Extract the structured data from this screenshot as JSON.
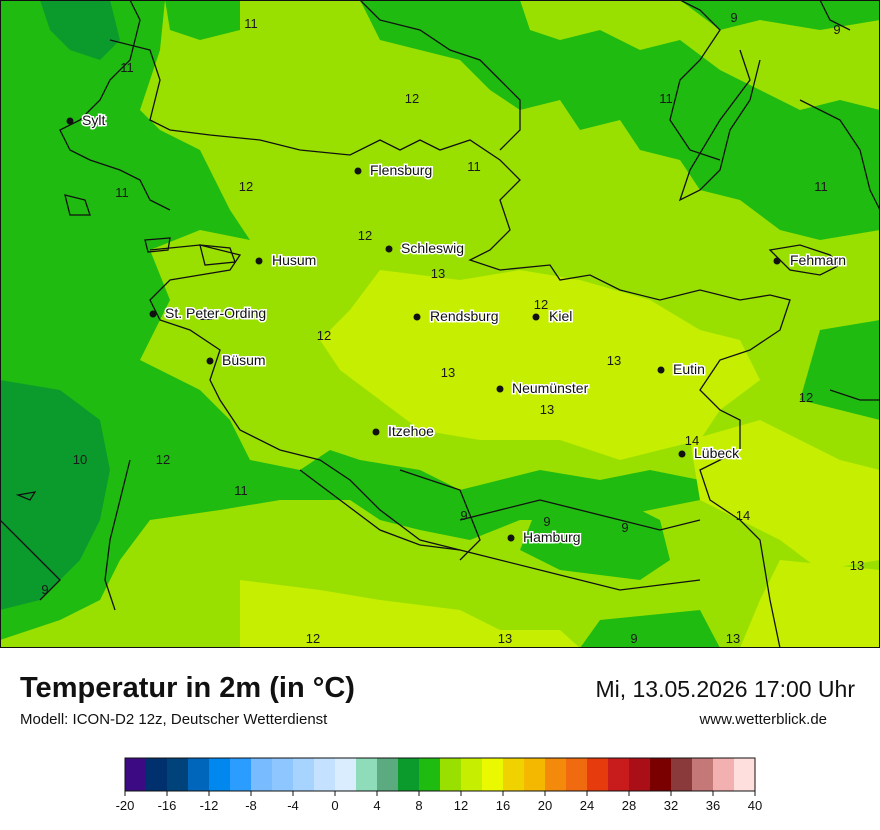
{
  "header": {
    "title": "Temperatur in 2m (in °C)",
    "datetime": "Mi, 13.05.2026 17:00 Uhr",
    "model": "Modell: ICON-D2 12z, Deutscher Wetterdienst",
    "website": "www.wetterblick.de"
  },
  "cities": [
    {
      "name": "Sylt"
    },
    {
      "name": "Flensburg"
    },
    {
      "name": "Husum"
    },
    {
      "name": "Schleswig"
    },
    {
      "name": "St. Peter-Ording"
    },
    {
      "name": "Rendsburg"
    },
    {
      "name": "Kiel"
    },
    {
      "name": "Büsum"
    },
    {
      "name": "Neumünster"
    },
    {
      "name": "Eutin"
    },
    {
      "name": "Fehmarn"
    },
    {
      "name": "Itzehoe"
    },
    {
      "name": "Lübeck"
    },
    {
      "name": "Hamburg"
    }
  ],
  "isotherm_labels": [
    "11",
    "9",
    "9",
    "11",
    "12",
    "11",
    "11",
    "12",
    "11",
    "11",
    "12",
    "13",
    "12",
    "12",
    "11",
    "12",
    "13",
    "13",
    "13",
    "12",
    "14",
    "10",
    "12",
    "11",
    "9",
    "9",
    "9",
    "14",
    "13",
    "9",
    "12",
    "13",
    "9",
    "13"
  ],
  "legend": {
    "colors": [
      "#3c0a82",
      "#00306e",
      "#00427a",
      "#0066bb",
      "#0088ee",
      "#2a9dff",
      "#78bbff",
      "#8ec6ff",
      "#a7d3ff",
      "#c4e2ff",
      "#d9edff",
      "#8fdcbb",
      "#5cab80",
      "#0b9b2c",
      "#1fbb10",
      "#99e000",
      "#c6ee00",
      "#eaf800",
      "#f0d200",
      "#f4b800",
      "#f48a0c",
      "#f06a10",
      "#e63b0c",
      "#c81c1c",
      "#aa0f18",
      "#7a0000",
      "#8a3a3a",
      "#c47878",
      "#f2b0b0",
      "#ffdede"
    ],
    "tick_labels": [
      "-20",
      "-16",
      "-12",
      "-8",
      "-4",
      "0",
      "4",
      "8",
      "12",
      "16",
      "20",
      "24",
      "28",
      "32",
      "36",
      "40"
    ]
  }
}
